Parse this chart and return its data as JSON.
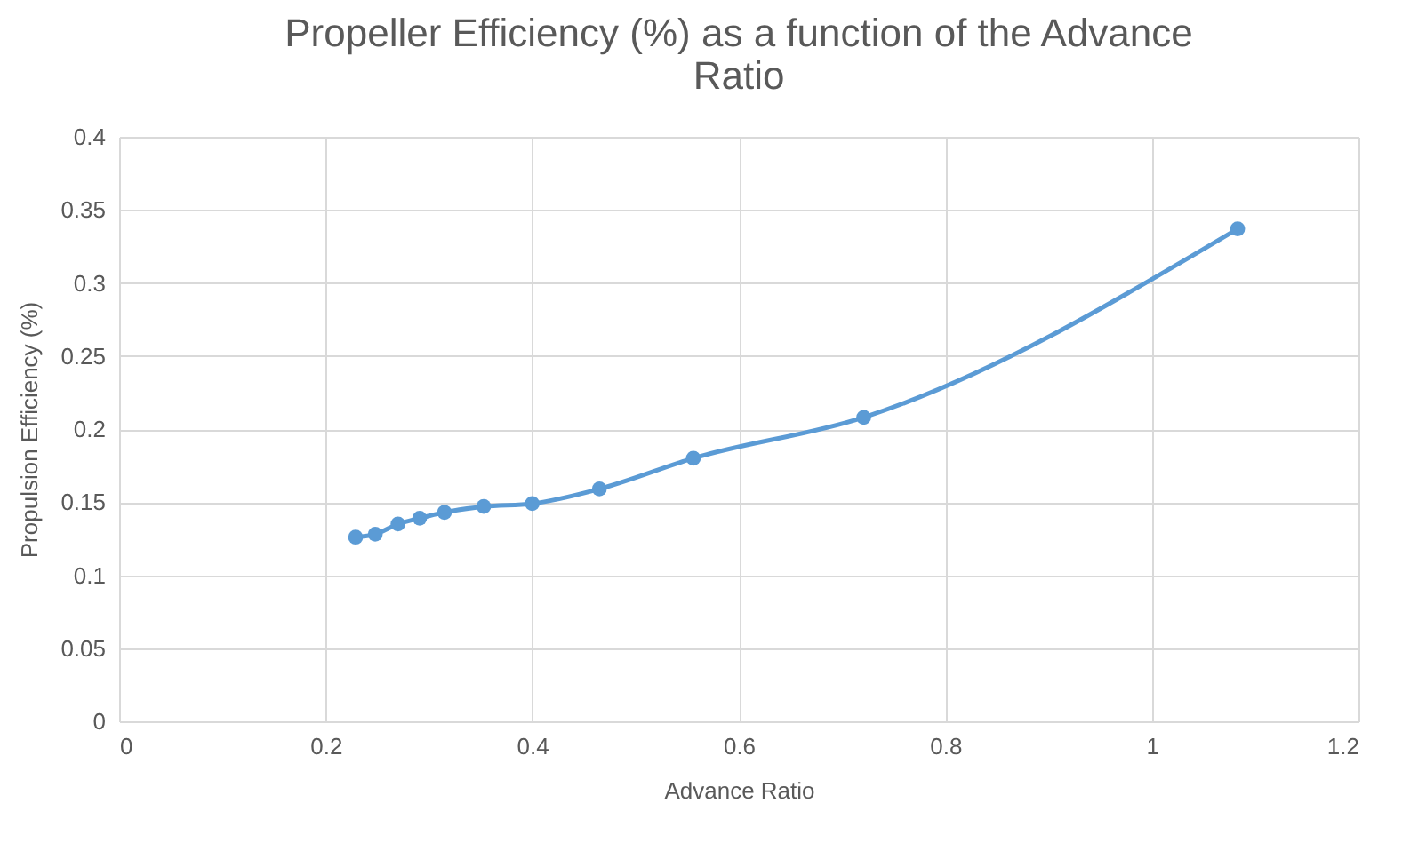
{
  "chart_data": {
    "type": "line",
    "title": "Propeller Efficiency (%) as a function of the Advance Ratio",
    "xlabel": "Advance Ratio",
    "ylabel": "Propulsion Efficiency (%)",
    "x": [
      0.229,
      0.248,
      0.27,
      0.291,
      0.315,
      0.353,
      0.4,
      0.465,
      0.556,
      0.721,
      1.083
    ],
    "series": [
      {
        "color": "#5b9bd5",
        "values": [
          0.126,
          0.128,
          0.135,
          0.139,
          0.143,
          0.147,
          0.149,
          0.159,
          0.18,
          0.208,
          0.337
        ]
      }
    ],
    "xlim": [
      0,
      1.2
    ],
    "xticks": [
      0,
      0.2,
      0.4,
      0.6,
      0.8,
      1,
      1.2
    ],
    "ylim": [
      0,
      0.4
    ],
    "yticks": [
      0,
      0.05,
      0.1,
      0.15,
      0.2,
      0.25,
      0.3,
      0.35,
      0.4
    ],
    "grid": true,
    "marker": "circle",
    "line_style": "solid",
    "legend": false
  }
}
